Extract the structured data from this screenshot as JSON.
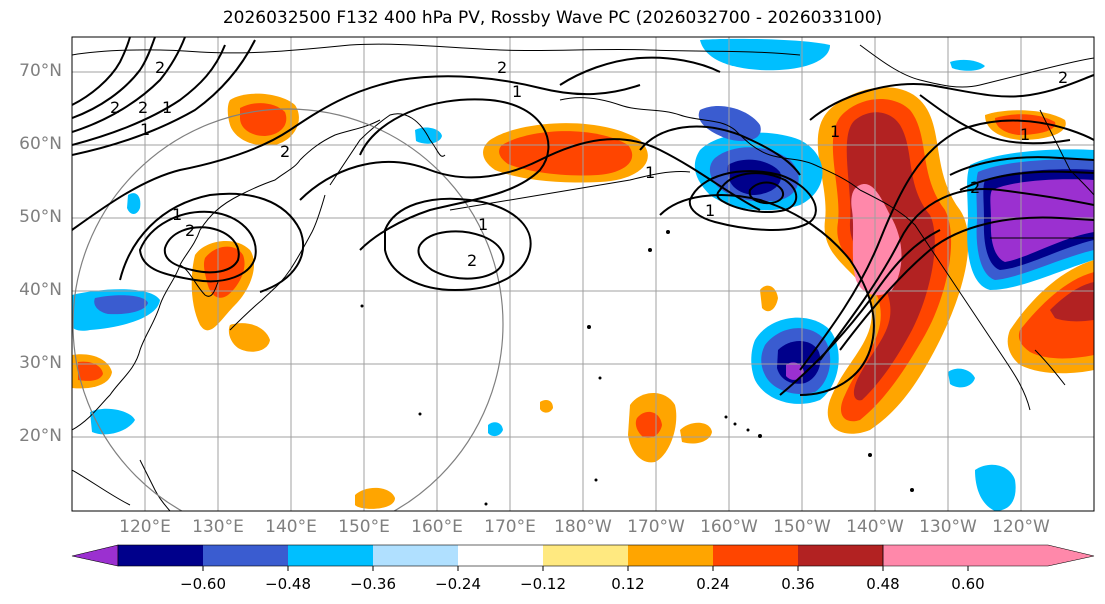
{
  "title": "2026032500 F132 400 hPa PV, Rossby Wave PC (2026032700 - 2026033100)",
  "lat_labels": [
    "70°N",
    "60°N",
    "50°N",
    "40°N",
    "30°N",
    "20°N"
  ],
  "lon_labels": [
    "120°E",
    "130°E",
    "140°E",
    "150°E",
    "160°E",
    "170°E",
    "180°W",
    "170°W",
    "160°W",
    "150°W",
    "140°W",
    "130°W",
    "120°W"
  ],
  "contour_labels": [
    "2",
    "2",
    "1",
    "1",
    "2",
    "2",
    "2",
    "1",
    "2",
    "1",
    "1",
    "1",
    "2",
    "1",
    "2",
    "1",
    "1",
    "2"
  ],
  "colorbar": {
    "tick_labels": [
      "−0.60",
      "−0.48",
      "−0.36",
      "−0.24",
      "−0.12",
      "0.12",
      "0.24",
      "0.36",
      "0.48",
      "0.60"
    ],
    "colors": [
      "#9b30d0",
      "#00008b",
      "#3a5cd0",
      "#00bfff",
      "#b0e0ff",
      "#ffffff",
      "#ffe980",
      "#ffa500",
      "#ff4500",
      "#b22222",
      "#ff88aa"
    ]
  },
  "colors": {
    "grid": "#a0a0a0",
    "coast": "#000000",
    "label_gray": "#7f7f7f"
  }
}
